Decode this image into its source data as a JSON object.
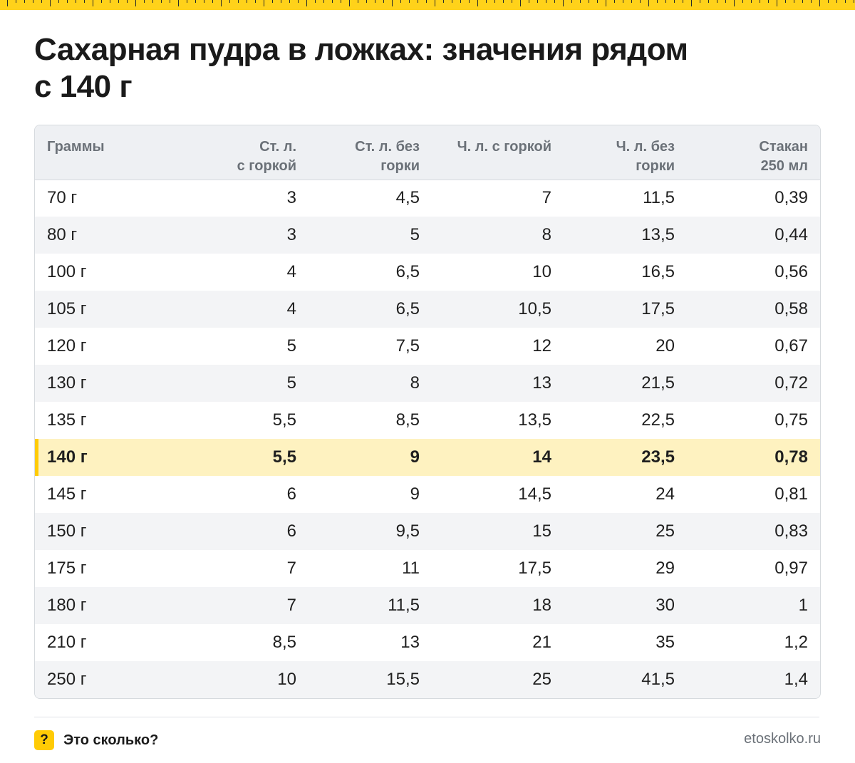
{
  "title": {
    "line1": "Сахарная пудра в ложках: значения рядом",
    "line2": "с 140 г"
  },
  "table": {
    "headers": [
      [
        "Граммы"
      ],
      [
        "Ст. л.",
        "с горкой"
      ],
      [
        "Ст. л. без",
        "горки"
      ],
      [
        "Ч. л. с горкой"
      ],
      [
        "Ч. л. без",
        "горки"
      ],
      [
        "Стакан",
        "250 мл"
      ]
    ],
    "rows": [
      [
        "70 г",
        "3",
        "4,5",
        "7",
        "11,5",
        "0,39"
      ],
      [
        "80 г",
        "3",
        "5",
        "8",
        "13,5",
        "0,44"
      ],
      [
        "100 г",
        "4",
        "6,5",
        "10",
        "16,5",
        "0,56"
      ],
      [
        "105 г",
        "4",
        "6,5",
        "10,5",
        "17,5",
        "0,58"
      ],
      [
        "120 г",
        "5",
        "7,5",
        "12",
        "20",
        "0,67"
      ],
      [
        "130 г",
        "5",
        "8",
        "13",
        "21,5",
        "0,72"
      ],
      [
        "135 г",
        "5,5",
        "8,5",
        "13,5",
        "22,5",
        "0,75"
      ],
      [
        "140 г",
        "5,5",
        "9",
        "14",
        "23,5",
        "0,78"
      ],
      [
        "145 г",
        "6",
        "9",
        "14,5",
        "24",
        "0,81"
      ],
      [
        "150 г",
        "6",
        "9,5",
        "15",
        "25",
        "0,83"
      ],
      [
        "175 г",
        "7",
        "11",
        "17,5",
        "29",
        "0,97"
      ],
      [
        "180 г",
        "7",
        "11,5",
        "18",
        "30",
        "1"
      ],
      [
        "210 г",
        "8,5",
        "13",
        "21",
        "35",
        "1,2"
      ],
      [
        "250 г",
        "10",
        "15,5",
        "25",
        "41,5",
        "1,4"
      ]
    ],
    "highlight_row": 7
  },
  "footer": {
    "icon_glyph": "?",
    "brand": "Это сколько?",
    "site": "etoskolko.ru"
  },
  "colors": {
    "accent_yellow": "#ffcb05",
    "highlight_row_bg": "#fef2c0",
    "header_bg": "#eef0f3",
    "stripe_bg": "#f3f4f6"
  }
}
